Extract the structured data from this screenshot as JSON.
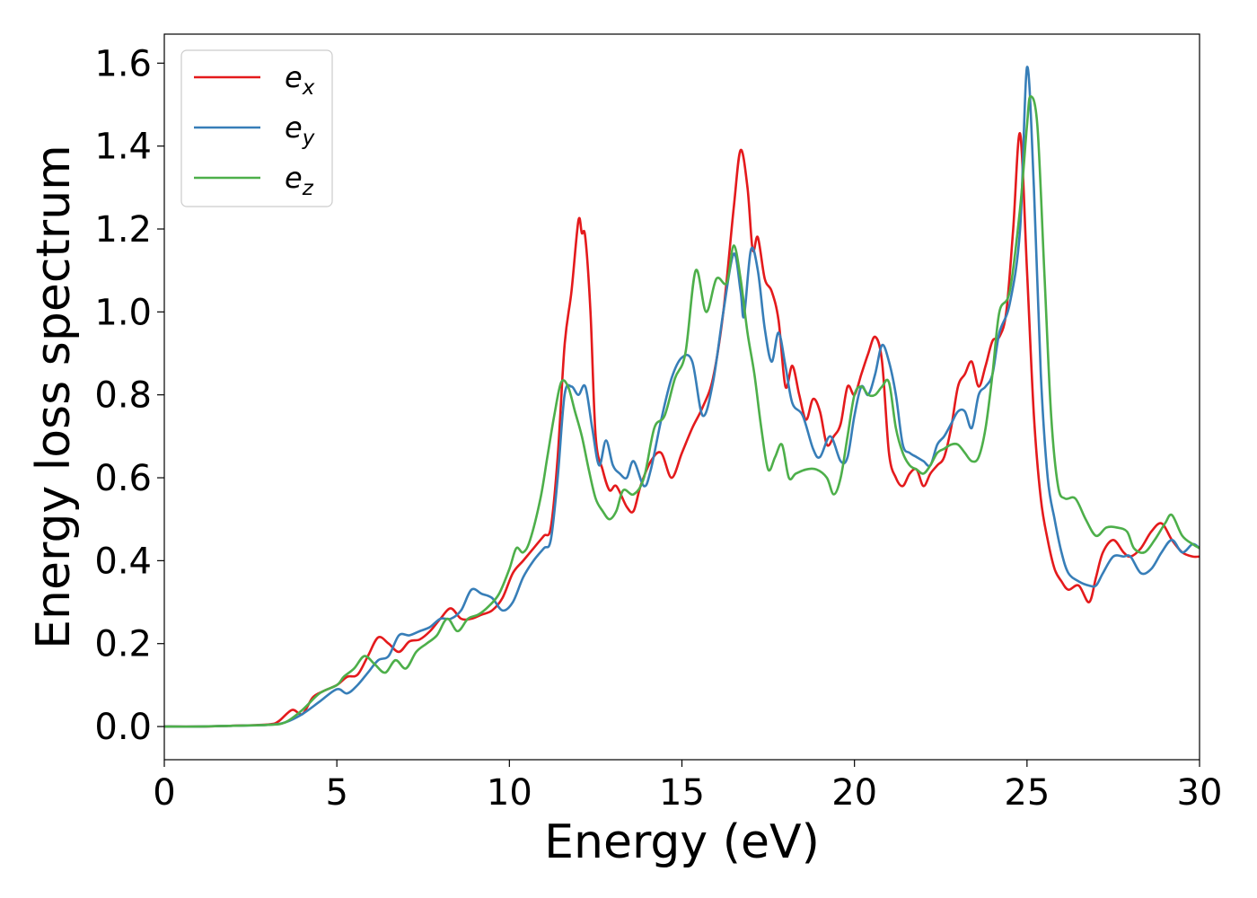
{
  "chart_data": {
    "type": "line",
    "title": "",
    "xlabel": "Energy (eV)",
    "ylabel": "Energy loss spectrum",
    "xlim": [
      0,
      30
    ],
    "ylim": [
      -0.08,
      1.67
    ],
    "xticks": [
      0,
      5,
      10,
      15,
      20,
      25,
      30
    ],
    "xtick_labels": [
      "0",
      "5",
      "10",
      "15",
      "20",
      "25",
      "30"
    ],
    "yticks": [
      0.0,
      0.2,
      0.4,
      0.6,
      0.8,
      1.0,
      1.2,
      1.4,
      1.6
    ],
    "ytick_labels": [
      "0.0",
      "0.2",
      "0.4",
      "0.6",
      "0.8",
      "1.0",
      "1.2",
      "1.4",
      "1.6"
    ],
    "grid": false,
    "legend_position": "top-left",
    "series": [
      {
        "name": "e_x",
        "legend_base": "e",
        "legend_sub": "x",
        "color": "#e41a1c",
        "x": [
          0,
          1,
          2,
          3,
          3.3,
          3.7,
          4.0,
          4.3,
          4.6,
          5.0,
          5.3,
          5.6,
          5.9,
          6.2,
          6.5,
          6.8,
          7.1,
          7.4,
          7.7,
          8.0,
          8.3,
          8.6,
          8.9,
          9.2,
          9.5,
          9.8,
          10.1,
          10.4,
          10.7,
          11.0,
          11.2,
          11.4,
          11.6,
          11.8,
          12.0,
          12.1,
          12.2,
          12.35,
          12.5,
          12.7,
          12.9,
          13.1,
          13.4,
          13.6,
          13.8,
          14.1,
          14.4,
          14.7,
          15.0,
          15.3,
          15.6,
          15.9,
          16.2,
          16.5,
          16.7,
          16.9,
          17.05,
          17.2,
          17.4,
          17.6,
          17.8,
          18.0,
          18.2,
          18.4,
          18.6,
          18.8,
          19.0,
          19.2,
          19.4,
          19.6,
          19.8,
          20.0,
          20.2,
          20.4,
          20.6,
          20.8,
          21.0,
          21.2,
          21.4,
          21.6,
          21.8,
          22.0,
          22.2,
          22.4,
          22.6,
          22.8,
          23.0,
          23.2,
          23.4,
          23.6,
          23.8,
          24.0,
          24.2,
          24.4,
          24.6,
          24.8,
          25.0,
          25.2,
          25.4,
          25.6,
          25.8,
          26.0,
          26.2,
          26.5,
          26.8,
          27.0,
          27.2,
          27.5,
          27.8,
          28.0,
          28.3,
          28.6,
          28.9,
          29.2,
          29.5,
          29.8,
          30.0
        ],
        "y": [
          0.0,
          0.0,
          0.002,
          0.005,
          0.012,
          0.04,
          0.03,
          0.07,
          0.085,
          0.1,
          0.12,
          0.125,
          0.17,
          0.215,
          0.2,
          0.18,
          0.205,
          0.21,
          0.23,
          0.26,
          0.285,
          0.26,
          0.26,
          0.27,
          0.28,
          0.31,
          0.37,
          0.4,
          0.43,
          0.46,
          0.48,
          0.65,
          0.92,
          1.05,
          1.22,
          1.19,
          1.18,
          1.0,
          0.7,
          0.62,
          0.57,
          0.58,
          0.53,
          0.52,
          0.58,
          0.64,
          0.66,
          0.6,
          0.66,
          0.72,
          0.77,
          0.84,
          1.0,
          1.25,
          1.39,
          1.3,
          1.15,
          1.18,
          1.08,
          1.05,
          0.98,
          0.82,
          0.87,
          0.8,
          0.74,
          0.79,
          0.76,
          0.68,
          0.7,
          0.73,
          0.82,
          0.8,
          0.85,
          0.9,
          0.94,
          0.88,
          0.66,
          0.6,
          0.58,
          0.61,
          0.62,
          0.58,
          0.61,
          0.63,
          0.65,
          0.72,
          0.82,
          0.85,
          0.88,
          0.82,
          0.87,
          0.93,
          0.94,
          1.0,
          1.2,
          1.43,
          1.1,
          0.75,
          0.55,
          0.45,
          0.38,
          0.35,
          0.33,
          0.34,
          0.3,
          0.36,
          0.42,
          0.45,
          0.42,
          0.41,
          0.43,
          0.47,
          0.49,
          0.45,
          0.42,
          0.41,
          0.41
        ]
      },
      {
        "name": "e_y",
        "legend_base": "e",
        "legend_sub": "y",
        "color": "#377eb8",
        "x": [
          0,
          1,
          2,
          3,
          3.5,
          4.0,
          4.5,
          5.0,
          5.3,
          5.6,
          5.9,
          6.2,
          6.5,
          6.8,
          7.1,
          7.4,
          7.7,
          8.0,
          8.3,
          8.6,
          8.9,
          9.2,
          9.5,
          9.8,
          10.1,
          10.4,
          10.7,
          11.0,
          11.2,
          11.4,
          11.6,
          11.8,
          12.0,
          12.2,
          12.4,
          12.6,
          12.8,
          13.0,
          13.2,
          13.4,
          13.6,
          13.9,
          14.1,
          14.4,
          14.7,
          15.0,
          15.3,
          15.6,
          15.9,
          16.2,
          16.5,
          16.7,
          16.8,
          17.0,
          17.2,
          17.4,
          17.6,
          17.8,
          18.0,
          18.2,
          18.5,
          18.8,
          19.0,
          19.3,
          19.6,
          19.8,
          20.0,
          20.2,
          20.4,
          20.6,
          20.8,
          21.0,
          21.2,
          21.4,
          21.6,
          21.8,
          22.0,
          22.2,
          22.4,
          22.6,
          22.8,
          23.0,
          23.2,
          23.4,
          23.6,
          23.8,
          24.0,
          24.2,
          24.5,
          24.8,
          25.0,
          25.2,
          25.4,
          25.6,
          25.8,
          26.0,
          26.2,
          26.5,
          26.8,
          27.0,
          27.2,
          27.5,
          27.8,
          28.0,
          28.3,
          28.6,
          28.9,
          29.2,
          29.5,
          29.8,
          30.0
        ],
        "y": [
          0.0,
          0.0,
          0.002,
          0.004,
          0.01,
          0.03,
          0.06,
          0.09,
          0.08,
          0.1,
          0.13,
          0.16,
          0.17,
          0.22,
          0.22,
          0.23,
          0.24,
          0.26,
          0.26,
          0.28,
          0.33,
          0.32,
          0.31,
          0.28,
          0.3,
          0.36,
          0.4,
          0.43,
          0.45,
          0.6,
          0.8,
          0.82,
          0.8,
          0.82,
          0.72,
          0.63,
          0.69,
          0.63,
          0.61,
          0.6,
          0.64,
          0.58,
          0.62,
          0.74,
          0.84,
          0.89,
          0.88,
          0.75,
          0.83,
          1.0,
          1.14,
          1.05,
          0.99,
          1.15,
          1.1,
          0.96,
          0.88,
          0.95,
          0.87,
          0.78,
          0.75,
          0.67,
          0.65,
          0.7,
          0.64,
          0.65,
          0.75,
          0.82,
          0.8,
          0.85,
          0.92,
          0.88,
          0.8,
          0.68,
          0.66,
          0.65,
          0.64,
          0.63,
          0.68,
          0.7,
          0.73,
          0.76,
          0.76,
          0.72,
          0.8,
          0.82,
          0.85,
          0.95,
          1.02,
          1.2,
          1.59,
          1.3,
          0.85,
          0.6,
          0.5,
          0.42,
          0.37,
          0.35,
          0.34,
          0.34,
          0.37,
          0.41,
          0.41,
          0.41,
          0.37,
          0.38,
          0.42,
          0.45,
          0.42,
          0.44,
          0.43
        ]
      },
      {
        "name": "e_z",
        "legend_base": "e",
        "legend_sub": "z",
        "color": "#4daf4a",
        "x": [
          0,
          1,
          2,
          3,
          3.5,
          4.0,
          4.5,
          5.0,
          5.2,
          5.5,
          5.8,
          6.1,
          6.4,
          6.7,
          7.0,
          7.3,
          7.6,
          7.9,
          8.2,
          8.5,
          8.8,
          9.1,
          9.4,
          9.7,
          10.0,
          10.2,
          10.4,
          10.6,
          10.9,
          11.1,
          11.3,
          11.5,
          11.7,
          11.9,
          12.1,
          12.3,
          12.5,
          12.7,
          12.9,
          13.1,
          13.3,
          13.6,
          13.9,
          14.2,
          14.5,
          14.8,
          15.1,
          15.4,
          15.7,
          16.0,
          16.3,
          16.5,
          16.7,
          16.9,
          17.1,
          17.3,
          17.5,
          17.7,
          17.9,
          18.1,
          18.3,
          18.6,
          18.9,
          19.2,
          19.4,
          19.6,
          19.8,
          20.0,
          20.2,
          20.4,
          20.6,
          20.8,
          21.0,
          21.2,
          21.4,
          21.6,
          21.8,
          22.0,
          22.2,
          22.4,
          22.6,
          22.8,
          23.0,
          23.2,
          23.4,
          23.6,
          23.8,
          24.0,
          24.2,
          24.5,
          24.8,
          25.0,
          25.1,
          25.3,
          25.5,
          25.7,
          25.9,
          26.1,
          26.4,
          26.7,
          27.0,
          27.3,
          27.6,
          27.9,
          28.1,
          28.4,
          28.7,
          29.0,
          29.2,
          29.5,
          29.8,
          30.0
        ],
        "y": [
          0.0,
          0.0,
          0.002,
          0.004,
          0.01,
          0.04,
          0.08,
          0.1,
          0.12,
          0.14,
          0.17,
          0.15,
          0.13,
          0.16,
          0.14,
          0.18,
          0.2,
          0.22,
          0.26,
          0.23,
          0.26,
          0.27,
          0.29,
          0.32,
          0.38,
          0.43,
          0.42,
          0.45,
          0.55,
          0.65,
          0.75,
          0.83,
          0.82,
          0.76,
          0.7,
          0.62,
          0.55,
          0.52,
          0.5,
          0.52,
          0.57,
          0.56,
          0.6,
          0.72,
          0.75,
          0.84,
          0.9,
          1.1,
          1.0,
          1.08,
          1.07,
          1.16,
          1.08,
          0.95,
          0.85,
          0.72,
          0.62,
          0.65,
          0.68,
          0.6,
          0.61,
          0.62,
          0.62,
          0.6,
          0.56,
          0.6,
          0.7,
          0.8,
          0.82,
          0.8,
          0.8,
          0.82,
          0.83,
          0.72,
          0.66,
          0.63,
          0.62,
          0.61,
          0.63,
          0.66,
          0.67,
          0.68,
          0.68,
          0.66,
          0.64,
          0.65,
          0.72,
          0.85,
          1.0,
          1.05,
          1.25,
          1.45,
          1.52,
          1.45,
          1.1,
          0.75,
          0.58,
          0.55,
          0.55,
          0.5,
          0.46,
          0.48,
          0.48,
          0.47,
          0.43,
          0.42,
          0.45,
          0.49,
          0.51,
          0.46,
          0.44,
          0.43
        ]
      }
    ]
  }
}
